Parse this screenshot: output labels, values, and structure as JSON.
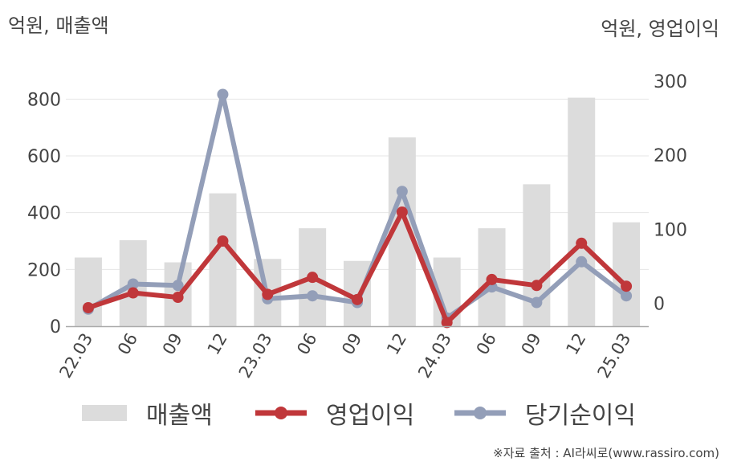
{
  "unit_left": "억원, 매출액",
  "unit_right": "억원, 영업이익",
  "source": "※자료 출처 : AI라씨로(www.rassiro.com)",
  "colors": {
    "revenue": "#dcdcdc",
    "operating": "#c0373a",
    "net": "#939eb8",
    "grid": "#e6e6e6",
    "axis": "#aaaaaa"
  },
  "chart_data": {
    "type": "bar",
    "categories": [
      "22.03",
      "06",
      "09",
      "12",
      "23.03",
      "06",
      "09",
      "12",
      "24.03",
      "06",
      "09",
      "12",
      "25.03"
    ],
    "y_left": {
      "ticks": [
        0,
        200,
        400,
        600,
        800
      ],
      "range": [
        0,
        900
      ]
    },
    "y_right": {
      "ticks": [
        0,
        100,
        200,
        300
      ],
      "range": [
        -31,
        314
      ]
    },
    "grid": true,
    "legend_position": "bottom",
    "series": [
      {
        "name": "매출액",
        "type": "bar",
        "axis": "left",
        "values": [
          242,
          303,
          225,
          468,
          237,
          345,
          230,
          665,
          242,
          345,
          500,
          805,
          366
        ]
      },
      {
        "name": "영업이익",
        "type": "line",
        "axis": "right",
        "values": [
          -6,
          14,
          8,
          84,
          12,
          35,
          5,
          123,
          -26,
          32,
          24,
          81,
          23
        ]
      },
      {
        "name": "당기순이익",
        "type": "line",
        "axis": "right",
        "values": [
          -8,
          26,
          24,
          282,
          6,
          10,
          1,
          151,
          -20,
          22,
          1,
          56,
          10
        ]
      }
    ]
  }
}
